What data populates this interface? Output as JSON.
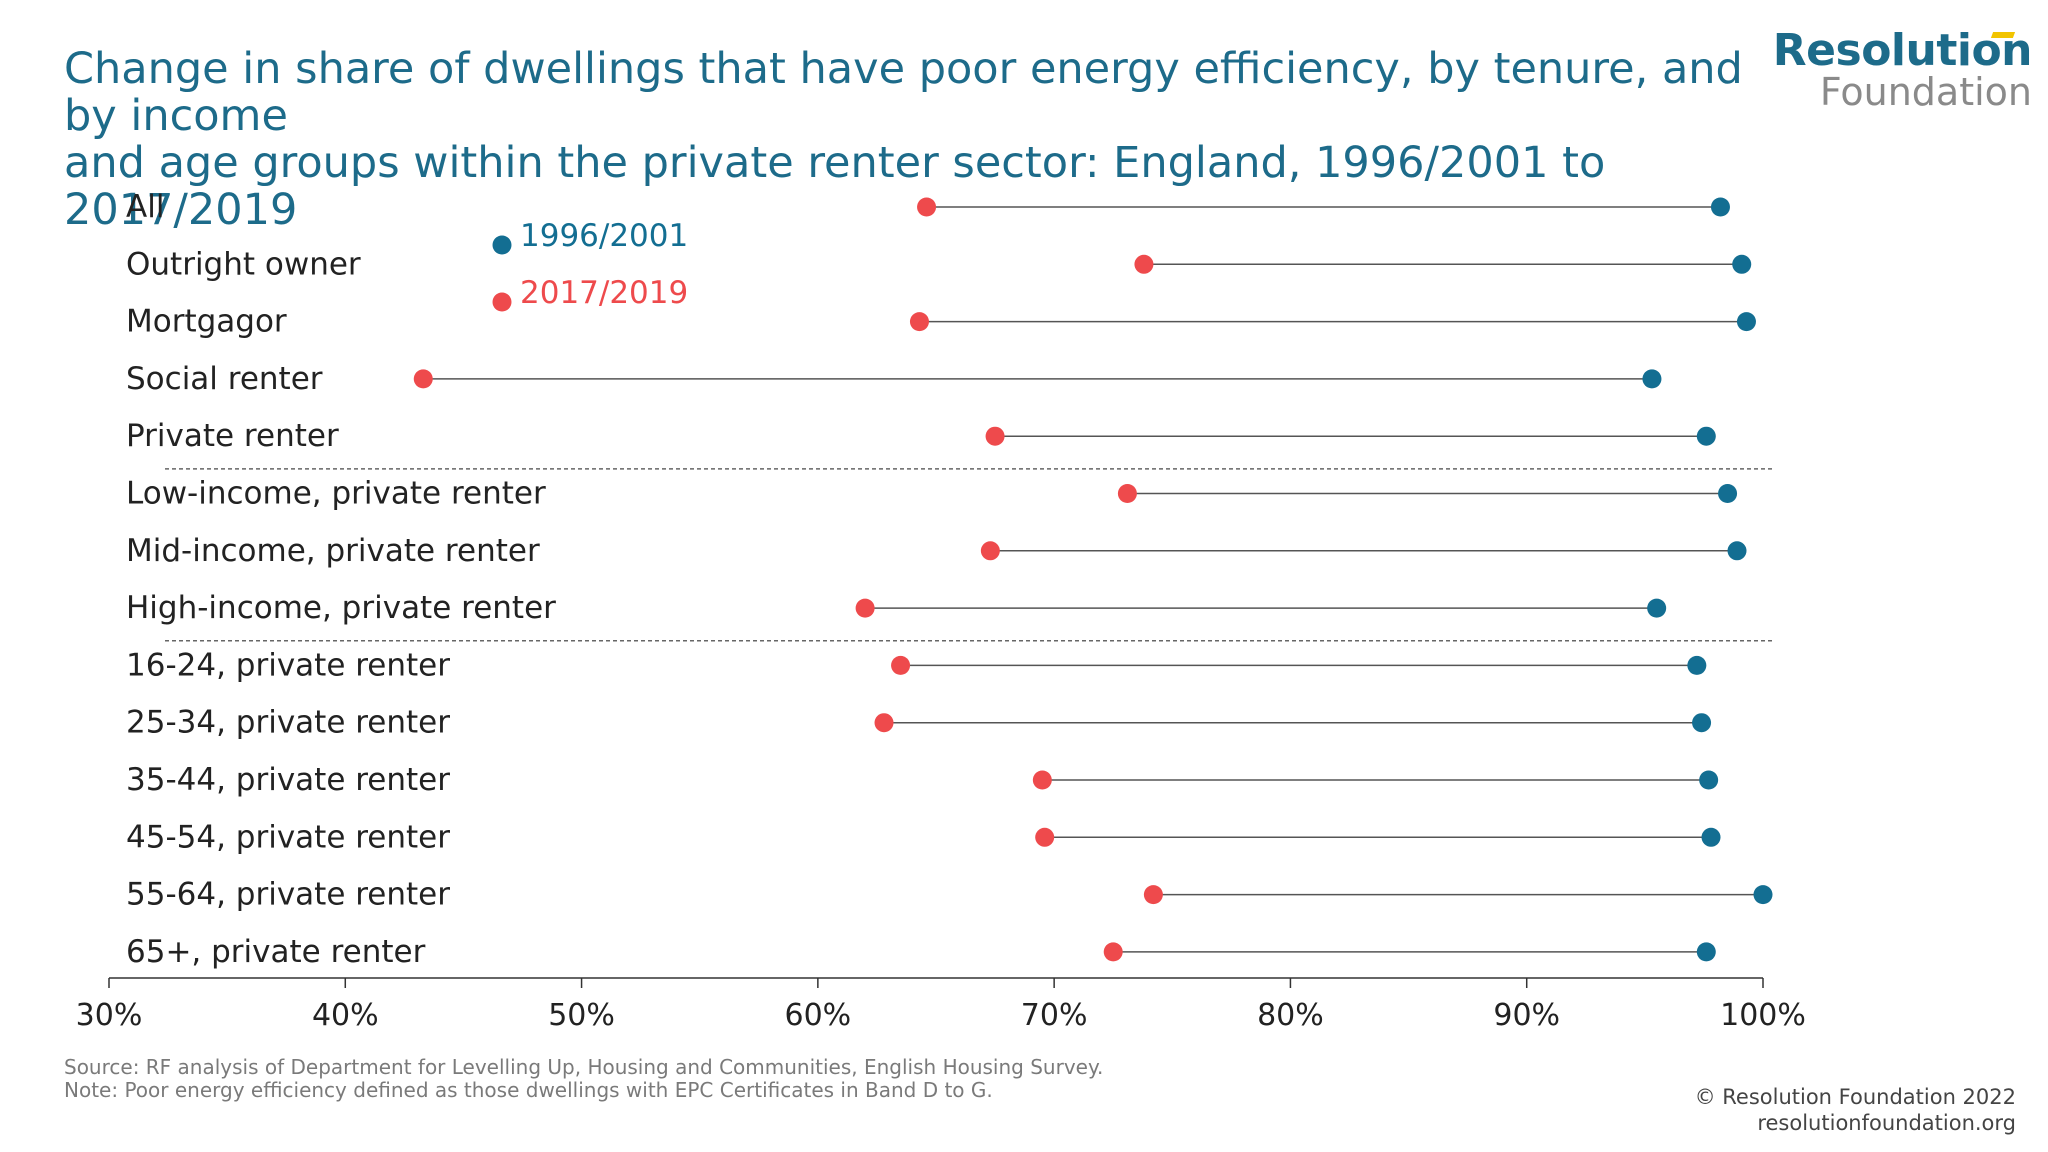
{
  "header": {
    "title_line1": "Change in share of dwellings that have poor energy efficiency, by tenure, and by income",
    "title_line2": "and age groups within the private renter sector: England, 1996/2001 to 2017/2019"
  },
  "logo": {
    "line1": "Resolution",
    "line2": "Foundation"
  },
  "footer": {
    "source": "Source: RF analysis of Department for Levelling Up, Housing and Communities, English Housing Survey.",
    "note": "Note: Poor energy efficiency defined as those dwellings with EPC Certificates in Band D to G.",
    "copyright": "© Resolution Foundation 2022",
    "url": "resolutionfoundation.org"
  },
  "colors": {
    "series_1996": "#136e92",
    "series_2017": "#ee4a4c",
    "title": "#1d6b8a",
    "connector": "#555555"
  },
  "chart_data": {
    "type": "dumbbell",
    "title": "Change in share of dwellings that have poor energy efficiency, by tenure, and by income and age groups within the private renter sector: England, 1996/2001 to 2017/2019",
    "categories": [
      "All",
      "Outright owner",
      "Mortgagor",
      "Social renter",
      "Private renter",
      "Low-income, private renter",
      "Mid-income, private renter",
      "High-income, private renter",
      "16-24, private renter",
      "25-34, private renter",
      "35-44, private renter",
      "45-54, private renter",
      "55-64, private renter",
      "65+, private renter"
    ],
    "series": [
      {
        "name": "1996/2001",
        "color": "#136e92",
        "values": [
          98.2,
          99.1,
          99.3,
          95.3,
          97.6,
          98.5,
          98.9,
          95.5,
          97.2,
          97.4,
          97.7,
          97.8,
          100.0,
          97.6
        ]
      },
      {
        "name": "2017/2019",
        "color": "#ee4a4c",
        "values": [
          64.6,
          73.8,
          64.3,
          43.3,
          67.5,
          73.1,
          67.3,
          62.0,
          63.5,
          62.8,
          69.5,
          69.6,
          74.2,
          72.5
        ]
      }
    ],
    "x_ticks": [
      "30%",
      "40%",
      "50%",
      "60%",
      "70%",
      "80%",
      "90%",
      "100%"
    ],
    "xlim": [
      30,
      100
    ],
    "group_dividers_after": [
      "Private renter",
      "High-income, private renter"
    ],
    "legend_position": "top-left",
    "grid": false
  }
}
